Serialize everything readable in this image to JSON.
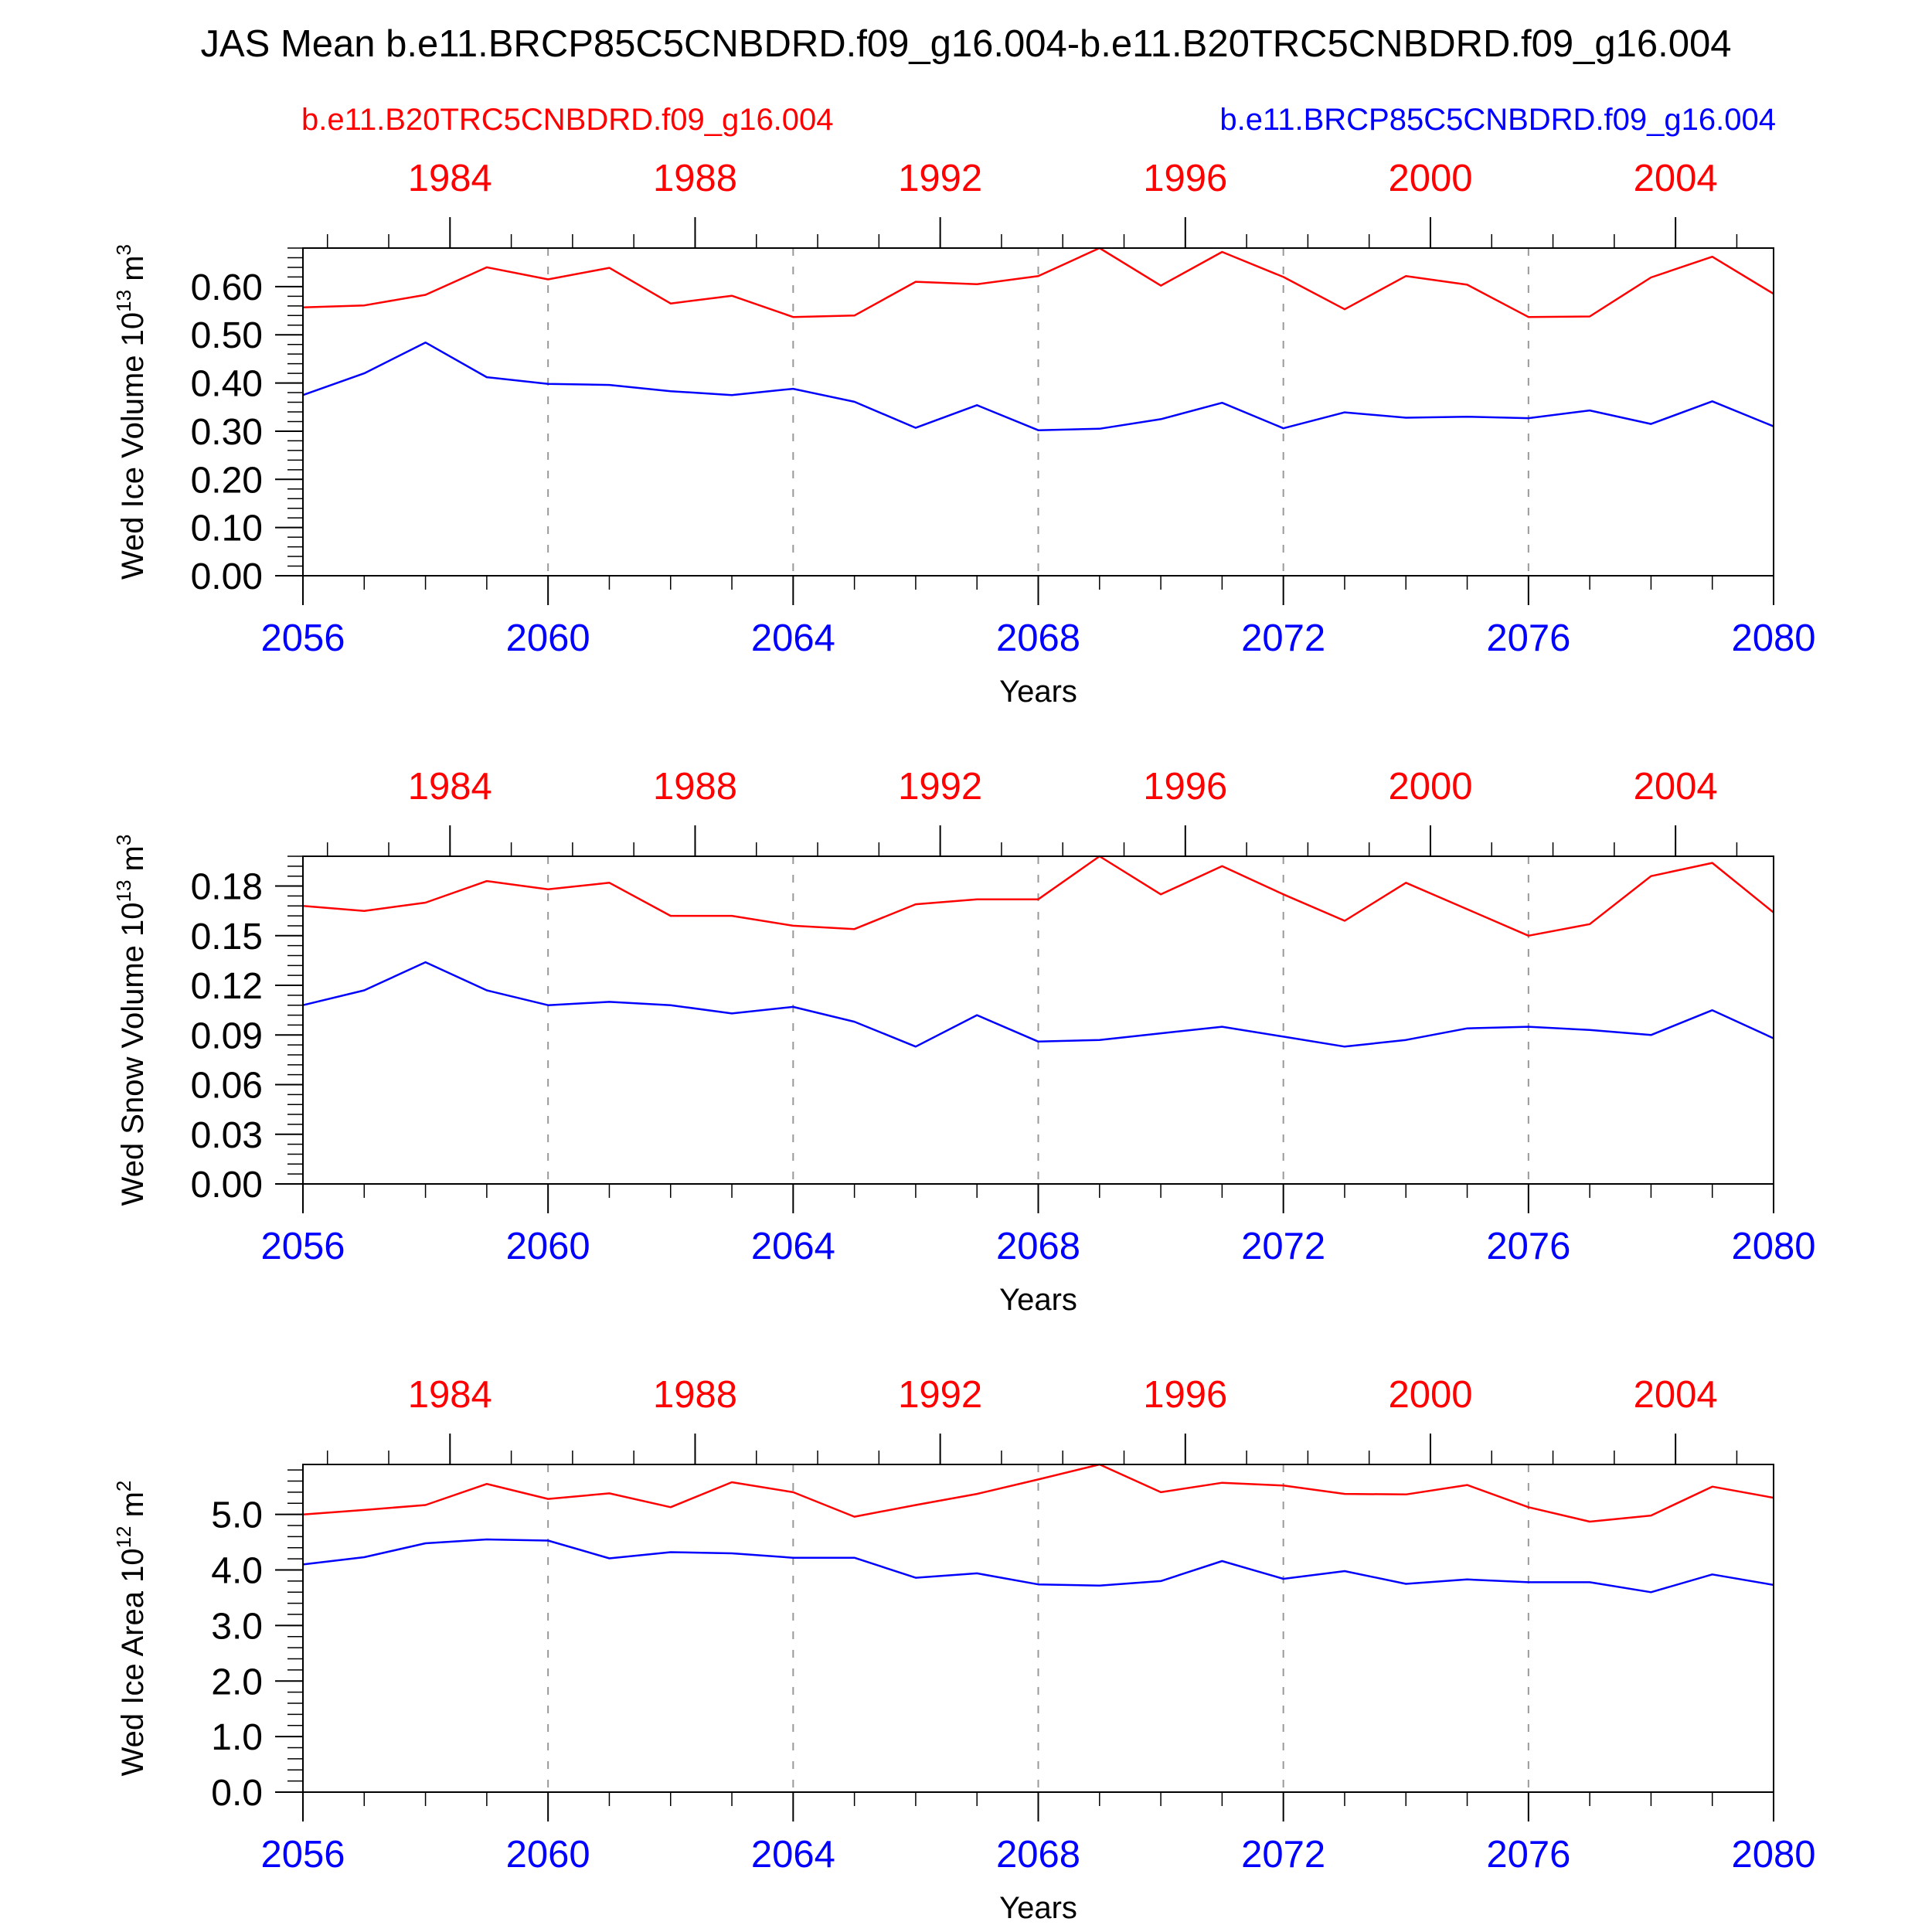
{
  "title": "JAS Mean b.e11.BRCP85C5CNBDRD.f09_g16.004-b.e11.B20TRC5CNBDRD.f09_g16.004",
  "legend_left": "b.e11.B20TRC5CNBDRD.f09_g16.004",
  "legend_right": "b.e11.BRCP85C5CNBDRD.f09_g16.004",
  "colors": {
    "red": "#ff0000",
    "blue": "#0000ff",
    "black": "#000000",
    "grid": "#999999"
  },
  "chart_data": [
    {
      "type": "line",
      "ylabel": "Wed Ice Volume 10",
      "ylabel_exp": "13",
      "ylabel_unit": " m",
      "ylabel_unit_exp": "3",
      "xlabel": "Years",
      "ylim": [
        0,
        0.68
      ],
      "yticks": [
        "0.00",
        "0.10",
        "0.20",
        "0.30",
        "0.40",
        "0.50",
        "0.60"
      ],
      "ytick_values": [
        0,
        0.1,
        0.2,
        0.3,
        0.4,
        0.5,
        0.6
      ],
      "yminor_step": 0.02,
      "xlim": [
        2056,
        2080
      ],
      "xticks_bottom": [
        "2056",
        "2060",
        "2064",
        "2068",
        "2072",
        "2076",
        "2080"
      ],
      "xticks_top": [
        "1984",
        "1988",
        "1992",
        "1996",
        "2000",
        "2004"
      ],
      "x": [
        2056,
        2057,
        2058,
        2059,
        2060,
        2061,
        2062,
        2063,
        2064,
        2065,
        2066,
        2067,
        2068,
        2069,
        2070,
        2071,
        2072,
        2073,
        2074,
        2075,
        2076,
        2077,
        2078,
        2079,
        2080
      ],
      "series": [
        {
          "name": "b.e11.B20TRC5CNBDRD.f09_g16.004",
          "color": "#ff0000",
          "values": [
            0.557,
            0.561,
            0.583,
            0.64,
            0.615,
            0.639,
            0.565,
            0.581,
            0.537,
            0.54,
            0.61,
            0.605,
            0.622,
            0.68,
            0.602,
            0.672,
            0.62,
            0.553,
            0.622,
            0.604,
            0.537,
            0.538,
            0.619,
            0.662,
            0.585
          ]
        },
        {
          "name": "b.e11.BRCP85C5CNBDRD.f09_g16.004",
          "color": "#0000ff",
          "values": [
            0.375,
            0.42,
            0.484,
            0.412,
            0.398,
            0.396,
            0.383,
            0.375,
            0.388,
            0.361,
            0.307,
            0.354,
            0.302,
            0.305,
            0.325,
            0.359,
            0.306,
            0.339,
            0.328,
            0.33,
            0.327,
            0.343,
            0.315,
            0.362,
            0.31
          ]
        }
      ]
    },
    {
      "type": "line",
      "ylabel": "Wed Snow Volume 10",
      "ylabel_exp": "13",
      "ylabel_unit": " m",
      "ylabel_unit_exp": "3",
      "xlabel": "Years",
      "ylim": [
        0,
        0.198
      ],
      "yticks": [
        "0.00",
        "0.03",
        "0.06",
        "0.09",
        "0.12",
        "0.15",
        "0.18"
      ],
      "ytick_values": [
        0,
        0.03,
        0.06,
        0.09,
        0.12,
        0.15,
        0.18
      ],
      "yminor_step": 0.006,
      "xlim": [
        2056,
        2080
      ],
      "xticks_bottom": [
        "2056",
        "2060",
        "2064",
        "2068",
        "2072",
        "2076",
        "2080"
      ],
      "xticks_top": [
        "1984",
        "1988",
        "1992",
        "1996",
        "2000",
        "2004"
      ],
      "x": [
        2056,
        2057,
        2058,
        2059,
        2060,
        2061,
        2062,
        2063,
        2064,
        2065,
        2066,
        2067,
        2068,
        2069,
        2070,
        2071,
        2072,
        2073,
        2074,
        2075,
        2076,
        2077,
        2078,
        2079,
        2080
      ],
      "series": [
        {
          "name": "b.e11.B20TRC5CNBDRD.f09_g16.004",
          "color": "#ff0000",
          "values": [
            0.168,
            0.165,
            0.17,
            0.183,
            0.178,
            0.182,
            0.162,
            0.162,
            0.156,
            0.154,
            0.169,
            0.172,
            0.172,
            0.198,
            0.175,
            0.192,
            0.175,
            0.159,
            0.182,
            0.166,
            0.15,
            0.157,
            0.186,
            0.194,
            0.164
          ]
        },
        {
          "name": "b.e11.BRCP85C5CNBDRD.f09_g16.004",
          "color": "#0000ff",
          "values": [
            0.108,
            0.117,
            0.134,
            0.117,
            0.108,
            0.11,
            0.108,
            0.103,
            0.107,
            0.098,
            0.083,
            0.102,
            0.086,
            0.087,
            0.091,
            0.095,
            0.089,
            0.083,
            0.087,
            0.094,
            0.095,
            0.093,
            0.09,
            0.105,
            0.088
          ]
        }
      ]
    },
    {
      "type": "line",
      "ylabel": "Wed Ice Area 10",
      "ylabel_exp": "12",
      "ylabel_unit": " m",
      "ylabel_unit_exp": "2",
      "xlabel": "Years",
      "ylim": [
        0,
        5.9
      ],
      "yticks": [
        "0.0",
        "1.0",
        "2.0",
        "3.0",
        "4.0",
        "5.0"
      ],
      "ytick_values": [
        0,
        1,
        2,
        3,
        4,
        5
      ],
      "yminor_step": 0.2,
      "xlim": [
        2056,
        2080
      ],
      "xticks_bottom": [
        "2056",
        "2060",
        "2064",
        "2068",
        "2072",
        "2076",
        "2080"
      ],
      "xticks_top": [
        "1984",
        "1988",
        "1992",
        "1996",
        "2000",
        "2004"
      ],
      "x": [
        2056,
        2057,
        2058,
        2059,
        2060,
        2061,
        2062,
        2063,
        2064,
        2065,
        2066,
        2067,
        2068,
        2069,
        2070,
        2071,
        2072,
        2073,
        2074,
        2075,
        2076,
        2077,
        2078,
        2079,
        2080
      ],
      "series": [
        {
          "name": "b.e11.B20TRC5CNBDRD.f09_g16.004",
          "color": "#ff0000",
          "values": [
            5.0,
            5.08,
            5.17,
            5.55,
            5.28,
            5.38,
            5.13,
            5.58,
            5.4,
            4.96,
            5.17,
            5.37,
            5.63,
            5.9,
            5.4,
            5.57,
            5.52,
            5.37,
            5.36,
            5.53,
            5.13,
            4.87,
            4.98,
            5.5,
            5.3
          ]
        },
        {
          "name": "b.e11.BRCP85C5CNBDRD.f09_g16.004",
          "color": "#0000ff",
          "values": [
            4.1,
            4.23,
            4.48,
            4.55,
            4.53,
            4.21,
            4.32,
            4.3,
            4.22,
            4.22,
            3.86,
            3.94,
            3.74,
            3.72,
            3.8,
            4.16,
            3.84,
            3.98,
            3.75,
            3.83,
            3.78,
            3.78,
            3.6,
            3.92,
            3.73
          ]
        }
      ]
    }
  ]
}
